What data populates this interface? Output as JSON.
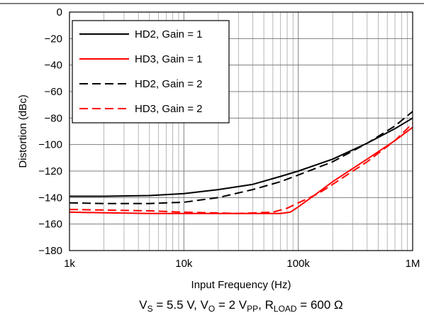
{
  "chart_data": {
    "type": "line",
    "xlabel": "Input Frequency (Hz)",
    "ylabel": "Distortion (dBc)",
    "xscale": "log",
    "xlim": [
      1000,
      1000000
    ],
    "ylim": [
      -180,
      0
    ],
    "grid": true,
    "legend_position": "top-left",
    "x_tick_labels": [
      "1k",
      "10k",
      "100k",
      "1M"
    ],
    "x_tick_values": [
      1000,
      10000,
      100000,
      1000000
    ],
    "y_ticks": [
      0,
      -20,
      -40,
      -60,
      -80,
      -100,
      -120,
      -140,
      -160,
      -180
    ],
    "y_tick_labels": [
      "0",
      "−20",
      "−40",
      "−60",
      "−80",
      "−100",
      "−120",
      "−140",
      "−160",
      "−180"
    ],
    "conditions": {
      "vs": "V",
      "vs_sub": "S",
      "vs_val": " = 5.5 V, ",
      "vo": "V",
      "vo_sub": "O",
      "vo_val": " = 2 V",
      "vpp_sub": "PP",
      "sep": ", ",
      "rl": "R",
      "rl_sub": "LOAD",
      "rl_val": " = 600 Ω"
    },
    "series": [
      {
        "name": "HD2, Gain = 1",
        "color": "#000000",
        "dash": "solid",
        "x": [
          1000,
          2000,
          5000,
          10000,
          20000,
          40000,
          70000,
          100000,
          200000,
          400000,
          700000,
          1000000
        ],
        "y": [
          -139,
          -139,
          -138.5,
          -137,
          -134,
          -130,
          -124,
          -120,
          -111,
          -99,
          -88,
          -80
        ]
      },
      {
        "name": "HD3, Gain = 1",
        "color": "#ff0000",
        "dash": "solid",
        "x": [
          1000,
          2000,
          5000,
          10000,
          20000,
          50000,
          70000,
          85000,
          100000,
          150000,
          200000,
          400000,
          700000,
          1000000
        ],
        "y": [
          -151,
          -151.5,
          -152,
          -152,
          -152,
          -152,
          -152,
          -151,
          -147,
          -136,
          -128,
          -111,
          -97,
          -87
        ]
      },
      {
        "name": "HD2, Gain = 2",
        "color": "#000000",
        "dash": "dashed",
        "x": [
          1000,
          2000,
          5000,
          10000,
          20000,
          40000,
          70000,
          100000,
          200000,
          400000,
          700000,
          1000000
        ],
        "y": [
          -144,
          -144.5,
          -144.5,
          -143.5,
          -140,
          -134,
          -128,
          -123,
          -113,
          -99,
          -86,
          -75
        ]
      },
      {
        "name": "HD3, Gain = 2",
        "color": "#ff0000",
        "dash": "dashed",
        "x": [
          1000,
          5000,
          10000,
          30000,
          60000,
          80000,
          100000,
          150000,
          200000,
          400000,
          700000,
          1000000
        ],
        "y": [
          -149,
          -150,
          -151,
          -152,
          -151,
          -148,
          -144,
          -137,
          -130,
          -113,
          -97,
          -84
        ]
      }
    ]
  }
}
